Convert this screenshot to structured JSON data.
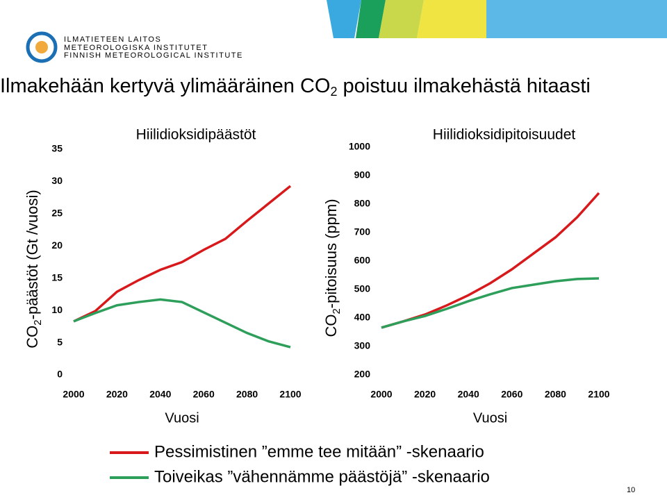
{
  "header": {
    "logo_lines": [
      "ILMATIETEEN LAITOS",
      "METEOROLOGISKA INSTITUTET",
      "FINNISH METEOROLOGICAL INSTITUTE"
    ]
  },
  "title": [
    "Ilmakehään kertyvä ylimääräinen CO",
    "2",
    " poistuu ilmakehästä hitaasti"
  ],
  "chart_data": [
    {
      "type": "line",
      "title": "Hiilidioksidipäästöt",
      "xlabel": "Vuosi",
      "ylabel": [
        "CO",
        "2",
        "-päästöt (Gt /vuosi)"
      ],
      "x": [
        2000,
        2010,
        2020,
        2030,
        2040,
        2050,
        2060,
        2070,
        2080,
        2090,
        2100
      ],
      "xlim": [
        2000,
        2100
      ],
      "xticks": [
        2000,
        2020,
        2040,
        2060,
        2080,
        2100
      ],
      "ylim": [
        0,
        35
      ],
      "yticks": [
        0,
        5,
        10,
        15,
        20,
        25,
        30,
        35
      ],
      "series": [
        {
          "name": "Pessimistinen ”emme tee mitään” -skenaario",
          "color": "#d7191c",
          "values": [
            8.3,
            9.9,
            12.9,
            14.7,
            16.3,
            17.5,
            19.4,
            21.1,
            23.9,
            26.6,
            29.3
          ]
        },
        {
          "name": "Toiveikas ”vähennämme päästöjä” -skenaario",
          "color": "#2e9e5b",
          "values": [
            8.3,
            9.6,
            10.8,
            11.3,
            11.7,
            11.3,
            9.7,
            8.1,
            6.5,
            5.2,
            4.3
          ]
        }
      ]
    },
    {
      "type": "line",
      "title": "Hiilidioksidipitoisuudet",
      "xlabel": "Vuosi",
      "ylabel": [
        "CO",
        "2",
        "-pitoisuus (ppm)"
      ],
      "x": [
        2000,
        2010,
        2020,
        2030,
        2040,
        2050,
        2060,
        2070,
        2080,
        2090,
        2100
      ],
      "xlim": [
        2000,
        2100
      ],
      "xticks": [
        2000,
        2020,
        2040,
        2060,
        2080,
        2100
      ],
      "ylim": [
        200,
        1000
      ],
      "yticks": [
        200,
        300,
        400,
        500,
        600,
        700,
        800,
        900,
        1000
      ],
      "series": [
        {
          "color": "#d7191c",
          "values": [
            366,
            388,
            412,
            444,
            480,
            522,
            571,
            627,
            683,
            754,
            839
          ]
        },
        {
          "color": "#2e9e5b",
          "values": [
            366,
            388,
            407,
            432,
            459,
            483,
            505,
            517,
            529,
            537,
            539
          ]
        }
      ]
    }
  ],
  "page_number": "10"
}
